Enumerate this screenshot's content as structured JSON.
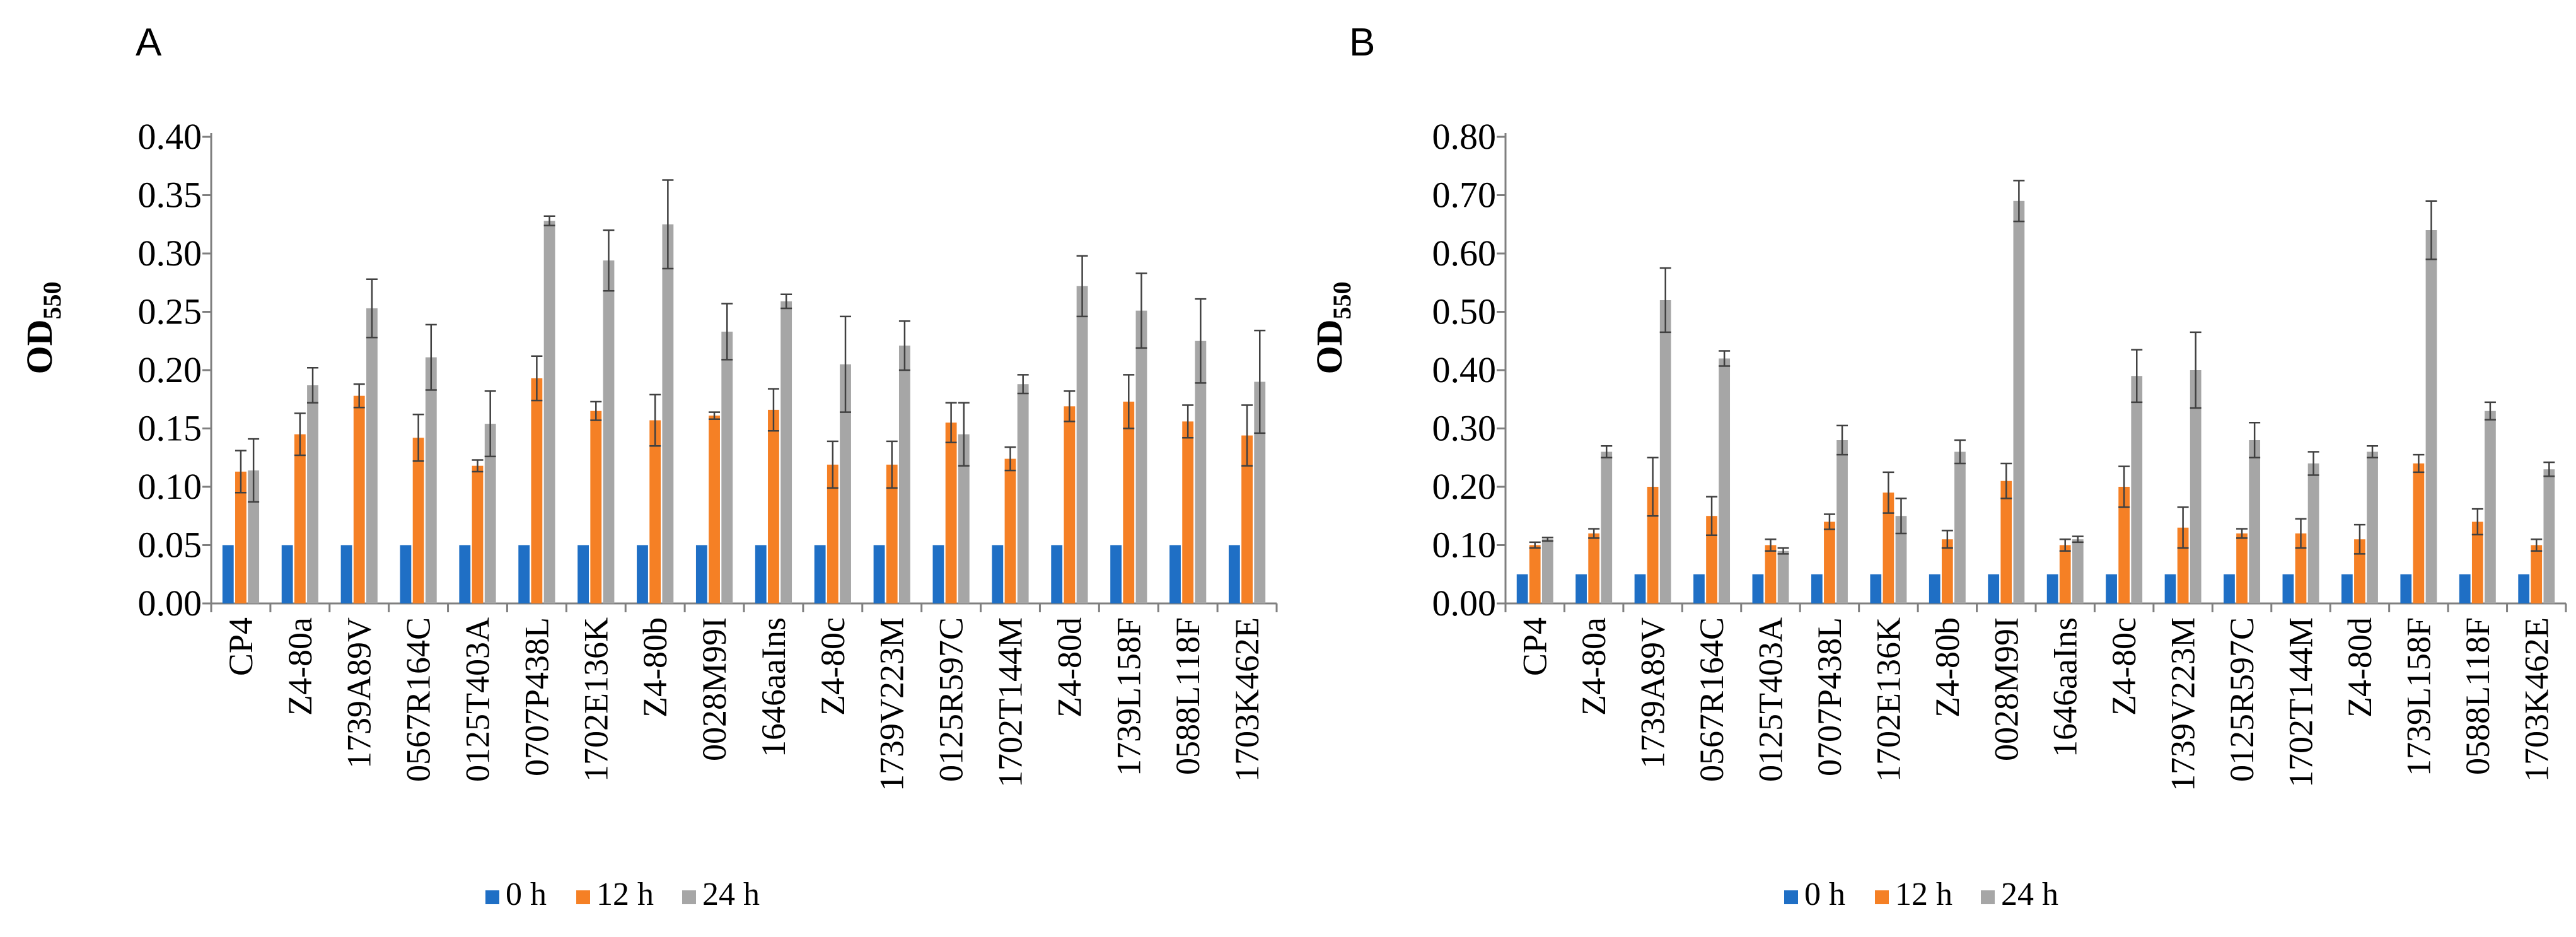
{
  "legend": [
    "0 h",
    "12 h",
    "24 h"
  ],
  "colors": {
    "0 h": "#1f6fc5",
    "12 h": "#f58025",
    "24 h": "#a6a6a6"
  },
  "chart_data": [
    {
      "type": "bar",
      "panel": "A",
      "title": "",
      "xlabel": "",
      "ylabel": "OD",
      "ylabel_sub": "550",
      "ylim": [
        0,
        0.4
      ],
      "ytick_step": 0.05,
      "ytick_labels": [
        "0.00",
        "0.05",
        "0.10",
        "0.15",
        "0.20",
        "0.25",
        "0.30",
        "0.35",
        "0.40"
      ],
      "legend_position": "bottom-center",
      "categories": [
        "CP4",
        "Z4-80a",
        "1739A89V",
        "0567R164C",
        "0125T403A",
        "0707P438L",
        "1702E136K",
        "Z4-80b",
        "0028M99I",
        "1646aaIns",
        "Z4-80c",
        "1739V223M",
        "0125R597C",
        "1702T144M",
        "Z4-80d",
        "1739L158F",
        "0588L118F",
        "1703K462E"
      ],
      "series": [
        {
          "name": "0 h",
          "values": [
            0.05,
            0.05,
            0.05,
            0.05,
            0.05,
            0.05,
            0.05,
            0.05,
            0.05,
            0.05,
            0.05,
            0.05,
            0.05,
            0.05,
            0.05,
            0.05,
            0.05,
            0.05
          ],
          "errors": [
            0,
            0,
            0,
            0,
            0,
            0,
            0,
            0,
            0,
            0,
            0,
            0,
            0,
            0,
            0,
            0,
            0,
            0
          ]
        },
        {
          "name": "12 h",
          "values": [
            0.113,
            0.145,
            0.178,
            0.142,
            0.118,
            0.193,
            0.165,
            0.157,
            0.161,
            0.166,
            0.119,
            0.119,
            0.155,
            0.124,
            0.169,
            0.173,
            0.156,
            0.144
          ],
          "errors": [
            0.018,
            0.018,
            0.01,
            0.02,
            0.005,
            0.019,
            0.008,
            0.022,
            0.003,
            0.018,
            0.02,
            0.02,
            0.017,
            0.01,
            0.013,
            0.023,
            0.014,
            0.026
          ]
        },
        {
          "name": "24 h",
          "values": [
            0.114,
            0.187,
            0.253,
            0.211,
            0.154,
            0.328,
            0.294,
            0.325,
            0.233,
            0.259,
            0.205,
            0.221,
            0.145,
            0.188,
            0.272,
            0.251,
            0.225,
            0.19
          ],
          "errors": [
            0.027,
            0.015,
            0.025,
            0.028,
            0.028,
            0.004,
            0.026,
            0.038,
            0.024,
            0.006,
            0.041,
            0.021,
            0.027,
            0.008,
            0.026,
            0.032,
            0.036,
            0.044
          ]
        }
      ]
    },
    {
      "type": "bar",
      "panel": "B",
      "title": "",
      "xlabel": "",
      "ylabel": "OD",
      "ylabel_sub": "550",
      "ylim": [
        0,
        0.8
      ],
      "ytick_step": 0.1,
      "ytick_labels": [
        "0.00",
        "0.10",
        "0.20",
        "0.30",
        "0.40",
        "0.50",
        "0.60",
        "0.70",
        "0.80"
      ],
      "legend_position": "bottom-center",
      "categories": [
        "CP4",
        "Z4-80a",
        "1739A89V",
        "0567R164C",
        "0125T403A",
        "0707P438L",
        "1702E136K",
        "Z4-80b",
        "0028M99I",
        "1646aaIns",
        "Z4-80c",
        "1739V223M",
        "0125R597C",
        "1702T144M",
        "Z4-80d",
        "1739L158F",
        "0588L118F",
        "1703K462E"
      ],
      "series": [
        {
          "name": "0 h",
          "values": [
            0.05,
            0.05,
            0.05,
            0.05,
            0.05,
            0.05,
            0.05,
            0.05,
            0.05,
            0.05,
            0.05,
            0.05,
            0.05,
            0.05,
            0.05,
            0.05,
            0.05,
            0.05
          ],
          "errors": [
            0,
            0,
            0,
            0,
            0,
            0,
            0,
            0,
            0,
            0,
            0,
            0,
            0,
            0,
            0,
            0,
            0,
            0
          ]
        },
        {
          "name": "12 h",
          "values": [
            0.1,
            0.12,
            0.2,
            0.15,
            0.1,
            0.14,
            0.19,
            0.11,
            0.21,
            0.1,
            0.2,
            0.13,
            0.12,
            0.12,
            0.11,
            0.24,
            0.14,
            0.1
          ],
          "errors": [
            0.005,
            0.008,
            0.05,
            0.033,
            0.01,
            0.013,
            0.035,
            0.015,
            0.03,
            0.01,
            0.035,
            0.035,
            0.008,
            0.025,
            0.025,
            0.015,
            0.022,
            0.01
          ]
        },
        {
          "name": "24 h",
          "values": [
            0.11,
            0.26,
            0.52,
            0.42,
            0.09,
            0.28,
            0.15,
            0.26,
            0.69,
            0.11,
            0.39,
            0.4,
            0.28,
            0.24,
            0.26,
            0.64,
            0.33,
            0.23
          ],
          "errors": [
            0.003,
            0.01,
            0.055,
            0.013,
            0.005,
            0.025,
            0.03,
            0.02,
            0.035,
            0.005,
            0.045,
            0.065,
            0.03,
            0.02,
            0.01,
            0.05,
            0.015,
            0.012
          ]
        }
      ]
    }
  ]
}
